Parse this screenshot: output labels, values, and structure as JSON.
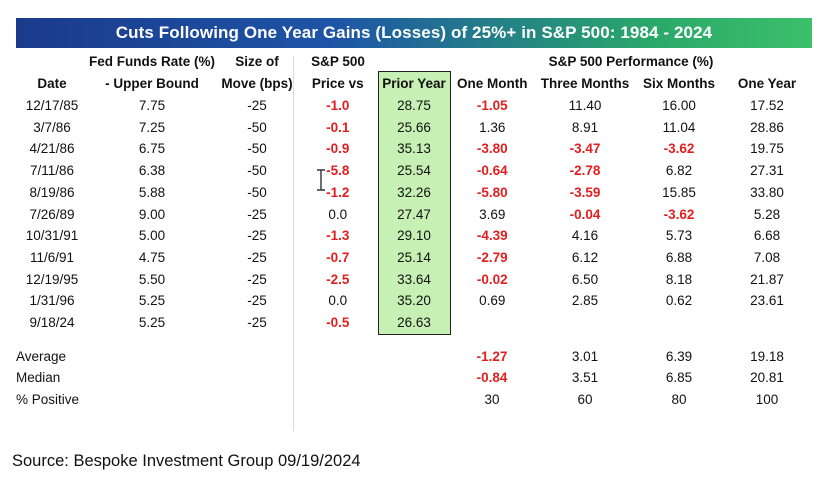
{
  "title": "Cuts Following One Year Gains (Losses) of 25%+ in S&P 500: 1984 - 2024",
  "colors": {
    "title_gradient_start": "#1b3a8c",
    "title_gradient_end": "#3cc06a",
    "negative": "#e02020",
    "highlight": "#c7f0b4"
  },
  "headers": {
    "row1": [
      "",
      "Fed Funds Rate (%)",
      "Size of",
      "S&P 500",
      "",
      "S&P 500 Performance (%)"
    ],
    "row2": [
      "Date",
      "- Upper Bound",
      "Move (bps)",
      "Price vs",
      "Prior Year",
      "One Month",
      "Three Months",
      "Six Months",
      "One Year"
    ]
  },
  "rows": [
    {
      "date": "12/17/85",
      "rate": "7.75",
      "move": "-25",
      "spx": "-1.0",
      "prior": "28.75",
      "m1": "-1.05",
      "m3": "11.40",
      "m6": "16.00",
      "y1": "17.52"
    },
    {
      "date": "3/7/86",
      "rate": "7.25",
      "move": "-50",
      "spx": "-0.1",
      "prior": "25.66",
      "m1": "1.36",
      "m3": "8.91",
      "m6": "11.04",
      "y1": "28.86"
    },
    {
      "date": "4/21/86",
      "rate": "6.75",
      "move": "-50",
      "spx": "-0.9",
      "prior": "35.13",
      "m1": "-3.80",
      "m3": "-3.47",
      "m6": "-3.62",
      "y1": "19.75"
    },
    {
      "date": "7/11/86",
      "rate": "6.38",
      "move": "-50",
      "spx": "-5.8",
      "prior": "25.54",
      "m1": "-0.64",
      "m3": "-2.78",
      "m6": "6.82",
      "y1": "27.31"
    },
    {
      "date": "8/19/86",
      "rate": "5.88",
      "move": "-50",
      "spx": "-1.2",
      "prior": "32.26",
      "m1": "-5.80",
      "m3": "-3.59",
      "m6": "15.85",
      "y1": "33.80"
    },
    {
      "date": "7/26/89",
      "rate": "9.00",
      "move": "-25",
      "spx": "0.0",
      "prior": "27.47",
      "m1": "3.69",
      "m3": "-0.04",
      "m6": "-3.62",
      "y1": "5.28"
    },
    {
      "date": "10/31/91",
      "rate": "5.00",
      "move": "-25",
      "spx": "-1.3",
      "prior": "29.10",
      "m1": "-4.39",
      "m3": "4.16",
      "m6": "5.73",
      "y1": "6.68"
    },
    {
      "date": "11/6/91",
      "rate": "4.75",
      "move": "-25",
      "spx": "-0.7",
      "prior": "25.14",
      "m1": "-2.79",
      "m3": "6.12",
      "m6": "6.88",
      "y1": "7.08"
    },
    {
      "date": "12/19/95",
      "rate": "5.50",
      "move": "-25",
      "spx": "-2.5",
      "prior": "33.64",
      "m1": "-0.02",
      "m3": "6.50",
      "m6": "8.18",
      "y1": "21.87"
    },
    {
      "date": "1/31/96",
      "rate": "5.25",
      "move": "-25",
      "spx": "0.0",
      "prior": "35.20",
      "m1": "0.69",
      "m3": "2.85",
      "m6": "0.62",
      "y1": "23.61"
    },
    {
      "date": "9/18/24",
      "rate": "5.25",
      "move": "-25",
      "spx": "-0.5",
      "prior": "26.63",
      "m1": "",
      "m3": "",
      "m6": "",
      "y1": ""
    }
  ],
  "summary": [
    {
      "label": "Average",
      "m1": "-1.27",
      "m3": "3.01",
      "m6": "6.39",
      "y1": "19.18"
    },
    {
      "label": "Median",
      "m1": "-0.84",
      "m3": "3.51",
      "m6": "6.85",
      "y1": "20.81"
    },
    {
      "label": "% Positive",
      "m1": "30",
      "m3": "60",
      "m6": "80",
      "y1": "100"
    }
  ],
  "source": "Source: Bespoke Investment Group 09/19/2024",
  "chart_data": {
    "type": "table",
    "title": "Cuts Following One Year Gains (Losses) of 25%+ in S&P 500: 1984 - 2024",
    "columns": [
      "Date",
      "Fed Funds Rate (%) - Upper Bound",
      "Size of Move (bps)",
      "S&P 500 Price vs",
      "Prior Year",
      "One Month",
      "Three Months",
      "Six Months",
      "One Year"
    ],
    "rows": [
      [
        "12/17/85",
        7.75,
        -25,
        -1.0,
        28.75,
        -1.05,
        11.4,
        16.0,
        17.52
      ],
      [
        "3/7/86",
        7.25,
        -50,
        -0.1,
        25.66,
        1.36,
        8.91,
        11.04,
        28.86
      ],
      [
        "4/21/86",
        6.75,
        -50,
        -0.9,
        35.13,
        -3.8,
        -3.47,
        -3.62,
        19.75
      ],
      [
        "7/11/86",
        6.38,
        -50,
        -5.8,
        25.54,
        -0.64,
        -2.78,
        6.82,
        27.31
      ],
      [
        "8/19/86",
        5.88,
        -50,
        -1.2,
        32.26,
        -5.8,
        -3.59,
        15.85,
        33.8
      ],
      [
        "7/26/89",
        9.0,
        -25,
        0.0,
        27.47,
        3.69,
        -0.04,
        -3.62,
        5.28
      ],
      [
        "10/31/91",
        5.0,
        -25,
        -1.3,
        29.1,
        -4.39,
        4.16,
        5.73,
        6.68
      ],
      [
        "11/6/91",
        4.75,
        -25,
        -0.7,
        25.14,
        -2.79,
        6.12,
        6.88,
        7.08
      ],
      [
        "12/19/95",
        5.5,
        -25,
        -2.5,
        33.64,
        -0.02,
        6.5,
        8.18,
        21.87
      ],
      [
        "1/31/96",
        5.25,
        -25,
        0.0,
        35.2,
        0.69,
        2.85,
        0.62,
        23.61
      ],
      [
        "9/18/24",
        5.25,
        -25,
        -0.5,
        26.63,
        null,
        null,
        null,
        null
      ]
    ],
    "summary": {
      "Average": [
        -1.27,
        3.01,
        6.39,
        19.18
      ],
      "Median": [
        -0.84,
        3.51,
        6.85,
        20.81
      ],
      "% Positive": [
        30,
        60,
        80,
        100
      ]
    }
  }
}
